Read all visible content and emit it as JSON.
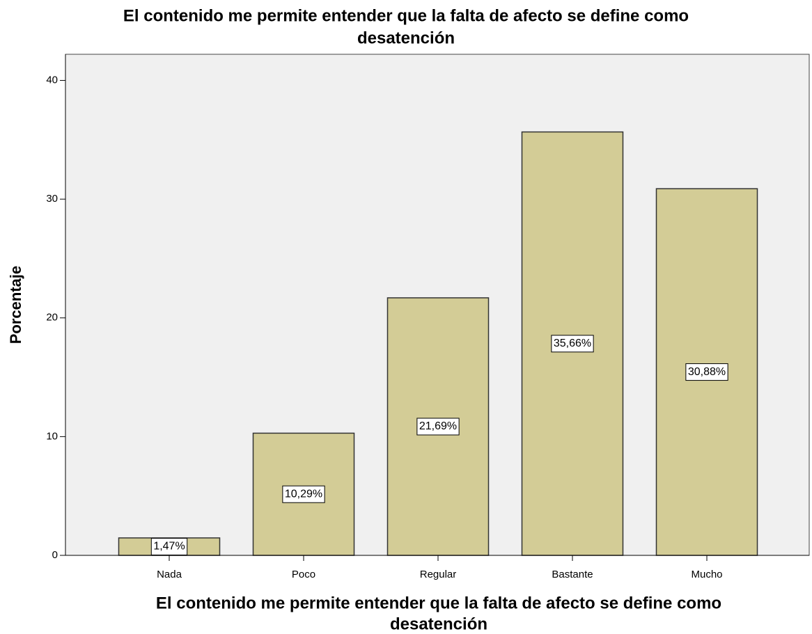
{
  "chart_data": {
    "type": "bar",
    "title": [
      "El contenido me permite entender que la falta de afecto se define como",
      "desatención"
    ],
    "x_label": [
      "El contenido me permite entender que la falta de afecto se define como",
      "desatención"
    ],
    "y_label": "Porcentaje",
    "categories": [
      "Nada",
      "Poco",
      "Regular",
      "Bastante",
      "Mucho"
    ],
    "values": [
      1.47,
      10.29,
      21.69,
      35.66,
      30.88
    ],
    "value_labels": [
      "1,47%",
      "10,29%",
      "21,69%",
      "35,66%",
      "30,88%"
    ],
    "color": "#d3cc96",
    "ylim": [
      0,
      42.2
    ],
    "yticks": [
      0,
      10,
      20,
      30,
      40
    ]
  }
}
